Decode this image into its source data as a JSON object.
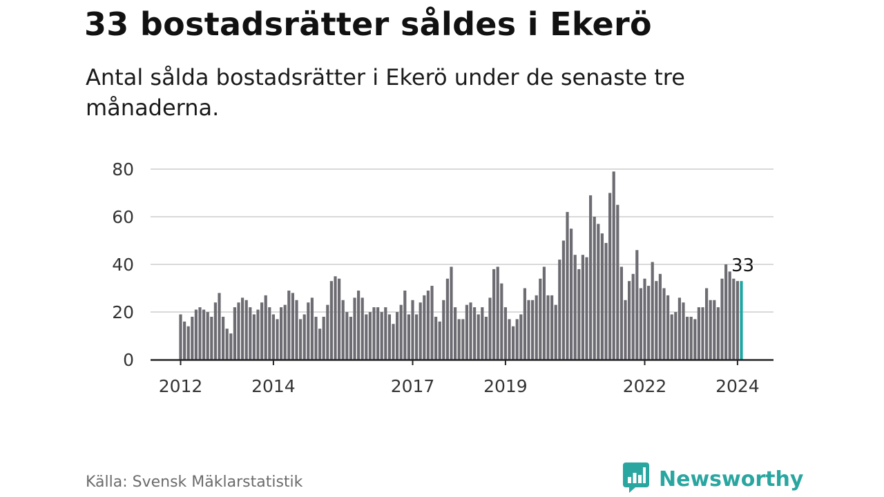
{
  "header": {
    "title": "33 bostadsrätter såldes i Ekerö",
    "subtitle": "Antal sålda bostadsrätter i Ekerö under de senaste tre månaderna."
  },
  "footer": {
    "source": "Källa: Svensk Mäklarstatistik",
    "brand": "Newsworthy"
  },
  "colors": {
    "bar": "#6d6c72",
    "highlight": "#1fa6a3",
    "grid": "#d9d9d9",
    "axis": "#222222",
    "brand": "#2aa6a0"
  },
  "icons": [
    "newsworthy-logo-icon"
  ],
  "chart_data": {
    "type": "bar",
    "title": "33 bostadsrätter såldes i Ekerö",
    "xlabel": "",
    "ylabel": "",
    "ylim": [
      0,
      80
    ],
    "yticks": [
      0,
      20,
      40,
      60,
      80
    ],
    "grid": true,
    "start": "2012-01",
    "xticks": [
      {
        "label": "2012",
        "index": 0
      },
      {
        "label": "2014",
        "index": 24
      },
      {
        "label": "2017",
        "index": 60
      },
      {
        "label": "2019",
        "index": 84
      },
      {
        "label": "2022",
        "index": 120
      },
      {
        "label": "2024",
        "index": 144
      }
    ],
    "highlight_index": 145,
    "callout": "33",
    "values": [
      19,
      16,
      14,
      18,
      21,
      22,
      21,
      20,
      18,
      24,
      28,
      18,
      13,
      11,
      22,
      24,
      26,
      25,
      22,
      19,
      21,
      24,
      27,
      22,
      19,
      17,
      22,
      23,
      29,
      28,
      25,
      17,
      19,
      24,
      26,
      18,
      13,
      18,
      23,
      33,
      35,
      34,
      25,
      20,
      18,
      26,
      29,
      26,
      19,
      20,
      22,
      22,
      20,
      22,
      19,
      15,
      20,
      23,
      29,
      19,
      25,
      19,
      24,
      27,
      29,
      31,
      18,
      16,
      25,
      34,
      39,
      22,
      17,
      17,
      23,
      24,
      22,
      19,
      22,
      18,
      26,
      38,
      39,
      32,
      22,
      17,
      14,
      17,
      19,
      30,
      25,
      25,
      27,
      34,
      39,
      27,
      27,
      23,
      42,
      50,
      62,
      55,
      44,
      38,
      44,
      43,
      69,
      60,
      57,
      53,
      49,
      70,
      79,
      65,
      39,
      25,
      33,
      36,
      46,
      30,
      34,
      31,
      41,
      33,
      36,
      30,
      27,
      19,
      20,
      26,
      24,
      18,
      18,
      17,
      22,
      22,
      30,
      25,
      25,
      22,
      34,
      40,
      37,
      34,
      33,
      33
    ]
  }
}
